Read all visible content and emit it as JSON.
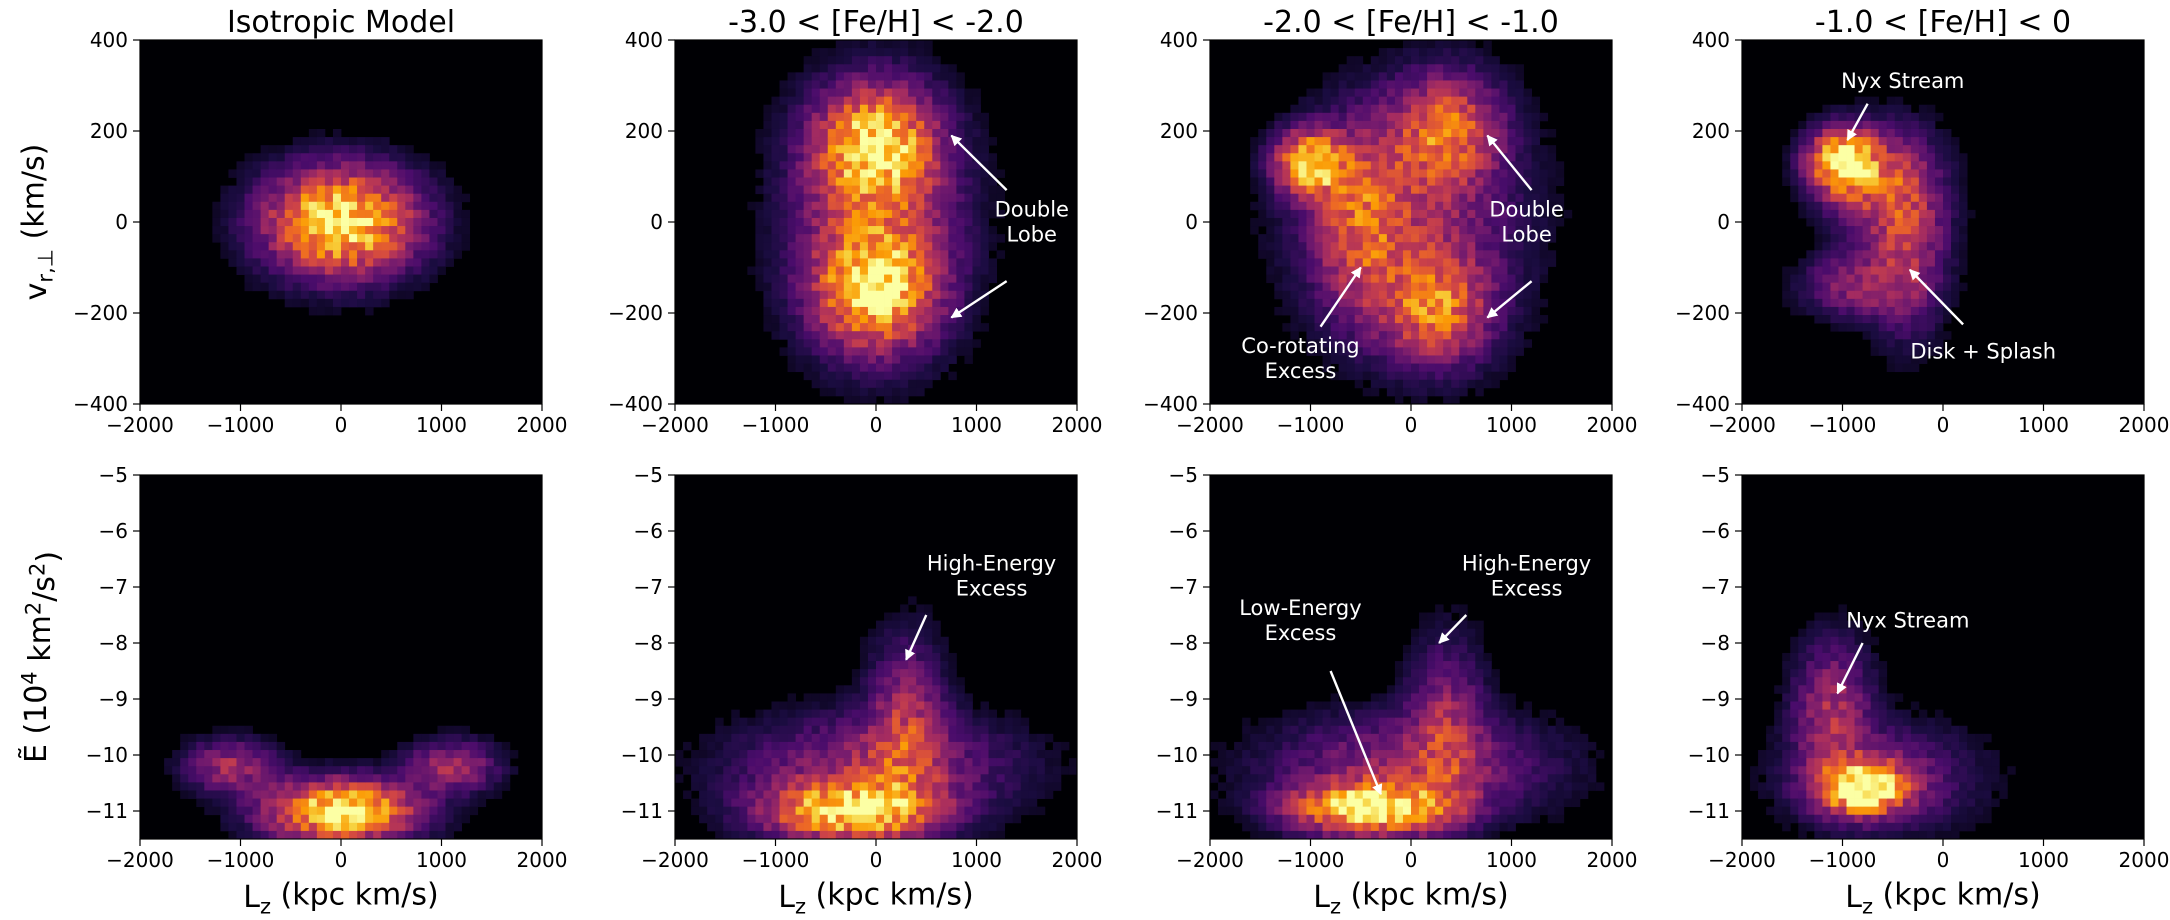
{
  "figure": {
    "colormap": [
      "#000004",
      "#1b0c41",
      "#4a0c6b",
      "#781c6d",
      "#a52c60",
      "#cf4446",
      "#ed6925",
      "#fb9b06",
      "#f7d13d",
      "#fcffa4"
    ],
    "annotation_color": "#ffffff"
  },
  "chart_data": [
    {
      "type": "heatmap",
      "panel": "top-1",
      "title": "Isotropic Model",
      "xlabel": "",
      "ylabel": "v_{r,⊥} (km/s)",
      "xlim": [
        -2000,
        2000
      ],
      "ylim": [
        -400,
        400
      ],
      "xticks": [
        "−2000",
        "−1000",
        "0",
        "1000",
        "2000"
      ],
      "yticks": [
        "−400",
        "−200",
        "0",
        "200",
        "400"
      ],
      "density_components": [
        {
          "x": 0,
          "y": 0,
          "sx": 480,
          "sy": 75,
          "amp": 1.0
        }
      ],
      "annotations": []
    },
    {
      "type": "heatmap",
      "panel": "top-2",
      "title": "-3.0 < [Fe/H] < -2.0",
      "xlabel": "",
      "ylabel": "",
      "xlim": [
        -2000,
        2000
      ],
      "ylim": [
        -400,
        400
      ],
      "xticks": [
        "−2000",
        "−1000",
        "0",
        "1000",
        "2000"
      ],
      "yticks": [
        "−400",
        "−200",
        "0",
        "200",
        "400"
      ],
      "density_components": [
        {
          "x": 0,
          "y": 170,
          "sx": 380,
          "sy": 80,
          "amp": 0.75
        },
        {
          "x": 0,
          "y": -150,
          "sx": 380,
          "sy": 80,
          "amp": 0.75
        },
        {
          "x": 0,
          "y": 0,
          "sx": 520,
          "sy": 170,
          "amp": 0.45
        }
      ],
      "annotations": [
        {
          "text": [
            "Double",
            "Lobe"
          ],
          "text_at": [
            1550,
            0
          ],
          "arrows": [
            {
              "from": [
                1300,
                70
              ],
              "to": [
                750,
                190
              ]
            },
            {
              "from": [
                1300,
                -130
              ],
              "to": [
                750,
                -210
              ]
            }
          ]
        }
      ]
    },
    {
      "type": "heatmap",
      "panel": "top-3",
      "title": "-2.0 < [Fe/H] < -1.0",
      "xlabel": "",
      "ylabel": "",
      "xlim": [
        -2000,
        2000
      ],
      "ylim": [
        -400,
        400
      ],
      "xticks": [
        "−2000",
        "−1000",
        "0",
        "1000",
        "2000"
      ],
      "yticks": [
        "−400",
        "−200",
        "0",
        "200",
        "400"
      ],
      "density_components": [
        {
          "x": -1000,
          "y": 130,
          "sx": 220,
          "sy": 45,
          "amp": 0.9
        },
        {
          "x": -500,
          "y": 0,
          "sx": 300,
          "sy": 130,
          "amp": 0.4
        },
        {
          "x": 350,
          "y": 200,
          "sx": 350,
          "sy": 80,
          "amp": 0.55
        },
        {
          "x": 250,
          "y": -190,
          "sx": 350,
          "sy": 80,
          "amp": 0.55
        },
        {
          "x": 0,
          "y": 0,
          "sx": 700,
          "sy": 160,
          "amp": 0.3
        }
      ],
      "annotations": [
        {
          "text": [
            "Double",
            "Lobe"
          ],
          "text_at": [
            1150,
            0
          ],
          "arrows": [
            {
              "from": [
                1200,
                70
              ],
              "to": [
                760,
                190
              ]
            },
            {
              "from": [
                1200,
                -130
              ],
              "to": [
                760,
                -210
              ]
            }
          ]
        },
        {
          "text": [
            "Co-rotating",
            "Excess"
          ],
          "text_at": [
            -1100,
            -300
          ],
          "arrows": [
            {
              "from": [
                -900,
                -230
              ],
              "to": [
                -500,
                -100
              ]
            }
          ]
        }
      ]
    },
    {
      "type": "heatmap",
      "panel": "top-4",
      "title": "-1.0 < [Fe/H] < 0",
      "xlabel": "",
      "ylabel": "",
      "xlim": [
        -2000,
        2000
      ],
      "ylim": [
        -400,
        400
      ],
      "xticks": [
        "−2000",
        "−1000",
        "0",
        "1000",
        "2000"
      ],
      "yticks": [
        "−400",
        "−200",
        "0",
        "200",
        "400"
      ],
      "density_components": [
        {
          "x": -1000,
          "y": 130,
          "sx": 220,
          "sy": 45,
          "amp": 1.0
        },
        {
          "x": -600,
          "y": 80,
          "sx": 350,
          "sy": 80,
          "amp": 0.4
        },
        {
          "x": -350,
          "y": -60,
          "sx": 250,
          "sy": 120,
          "amp": 0.35
        },
        {
          "x": -900,
          "y": -140,
          "sx": 320,
          "sy": 45,
          "amp": 0.3
        }
      ],
      "annotations": [
        {
          "text": [
            "Nyx Stream"
          ],
          "text_at": [
            -400,
            310
          ],
          "arrows": [
            {
              "from": [
                -750,
                260
              ],
              "to": [
                -950,
                180
              ]
            }
          ]
        },
        {
          "text": [
            "Disk + Splash"
          ],
          "text_at": [
            400,
            -285
          ],
          "arrows": [
            {
              "from": [
                200,
                -225
              ],
              "to": [
                -330,
                -105
              ]
            }
          ]
        }
      ]
    },
    {
      "type": "heatmap",
      "panel": "bottom-1",
      "title": "",
      "xlabel": "L_z (kpc km/s)",
      "ylabel": "Ẽ (10^4 km^2/s^2)",
      "xlim": [
        -2000,
        2000
      ],
      "ylim": [
        -11.5,
        -5
      ],
      "xticks": [
        "−2000",
        "−1000",
        "0",
        "1000",
        "2000"
      ],
      "yticks": [
        "−5",
        "−6",
        "−7",
        "−8",
        "−9",
        "−10",
        "−11"
      ],
      "density_components": [
        {
          "x": 0,
          "y": -11.0,
          "sx": 480,
          "sy": 0.35,
          "amp": 1.0
        },
        {
          "x": -1100,
          "y": -10.2,
          "sx": 300,
          "sy": 0.3,
          "amp": 0.35
        },
        {
          "x": 1100,
          "y": -10.2,
          "sx": 300,
          "sy": 0.3,
          "amp": 0.35
        }
      ],
      "annotations": []
    },
    {
      "type": "heatmap",
      "panel": "bottom-2",
      "title": "",
      "xlabel": "L_z (kpc km/s)",
      "ylabel": "",
      "xlim": [
        -2000,
        2000
      ],
      "ylim": [
        -11.5,
        -5
      ],
      "xticks": [
        "−2000",
        "−1000",
        "0",
        "1000",
        "2000"
      ],
      "yticks": [
        "−5",
        "−6",
        "−7",
        "−8",
        "−9",
        "−10",
        "−11"
      ],
      "density_components": [
        {
          "x": -250,
          "y": -11.0,
          "sx": 550,
          "sy": 0.35,
          "amp": 0.9
        },
        {
          "x": 300,
          "y": -9.5,
          "sx": 250,
          "sy": 1.0,
          "amp": 0.35
        },
        {
          "x": 0,
          "y": -10.2,
          "sx": 900,
          "sy": 0.6,
          "amp": 0.3
        }
      ],
      "annotations": [
        {
          "text": [
            "High-Energy",
            "Excess"
          ],
          "text_at": [
            1150,
            -6.8
          ],
          "arrows": [
            {
              "from": [
                500,
                -7.5
              ],
              "to": [
                300,
                -8.3
              ]
            }
          ]
        }
      ]
    },
    {
      "type": "heatmap",
      "panel": "bottom-3",
      "title": "",
      "xlabel": "L_z (kpc km/s)",
      "ylabel": "",
      "xlim": [
        -2000,
        2000
      ],
      "ylim": [
        -11.5,
        -5
      ],
      "xticks": [
        "−2000",
        "−1000",
        "0",
        "1000",
        "2000"
      ],
      "yticks": [
        "−5",
        "−6",
        "−7",
        "−8",
        "−9",
        "−10",
        "−11"
      ],
      "density_components": [
        {
          "x": -400,
          "y": -10.95,
          "sx": 500,
          "sy": 0.3,
          "amp": 1.0
        },
        {
          "x": 350,
          "y": -9.5,
          "sx": 250,
          "sy": 1.0,
          "amp": 0.3
        },
        {
          "x": 0,
          "y": -10.2,
          "sx": 900,
          "sy": 0.6,
          "amp": 0.3
        }
      ],
      "annotations": [
        {
          "text": [
            "High-Energy",
            "Excess"
          ],
          "text_at": [
            1150,
            -6.8
          ],
          "arrows": [
            {
              "from": [
                550,
                -7.5
              ],
              "to": [
                280,
                -8.0
              ]
            }
          ]
        },
        {
          "text": [
            "Low-Energy",
            "Excess"
          ],
          "text_at": [
            -1100,
            -7.6
          ],
          "arrows": [
            {
              "from": [
                -800,
                -8.5
              ],
              "to": [
                -300,
                -10.7
              ]
            }
          ]
        }
      ]
    },
    {
      "type": "heatmap",
      "panel": "bottom-4",
      "title": "",
      "xlabel": "L_z (kpc km/s)",
      "ylabel": "",
      "xlim": [
        -2000,
        2000
      ],
      "ylim": [
        -11.5,
        -5
      ],
      "xticks": [
        "−2000",
        "−1000",
        "0",
        "1000",
        "2000"
      ],
      "yticks": [
        "−5",
        "−6",
        "−7",
        "−8",
        "−9",
        "−10",
        "−11"
      ],
      "density_components": [
        {
          "x": -800,
          "y": -10.6,
          "sx": 280,
          "sy": 0.3,
          "amp": 1.0
        },
        {
          "x": -1100,
          "y": -9.2,
          "sx": 250,
          "sy": 0.8,
          "amp": 0.35
        },
        {
          "x": -600,
          "y": -10.4,
          "sx": 600,
          "sy": 0.6,
          "amp": 0.25
        }
      ],
      "annotations": [
        {
          "text": [
            "Nyx Stream"
          ],
          "text_at": [
            -350,
            -7.6
          ],
          "arrows": [
            {
              "from": [
                -800,
                -8.0
              ],
              "to": [
                -1050,
                -8.9
              ]
            }
          ]
        }
      ]
    }
  ]
}
